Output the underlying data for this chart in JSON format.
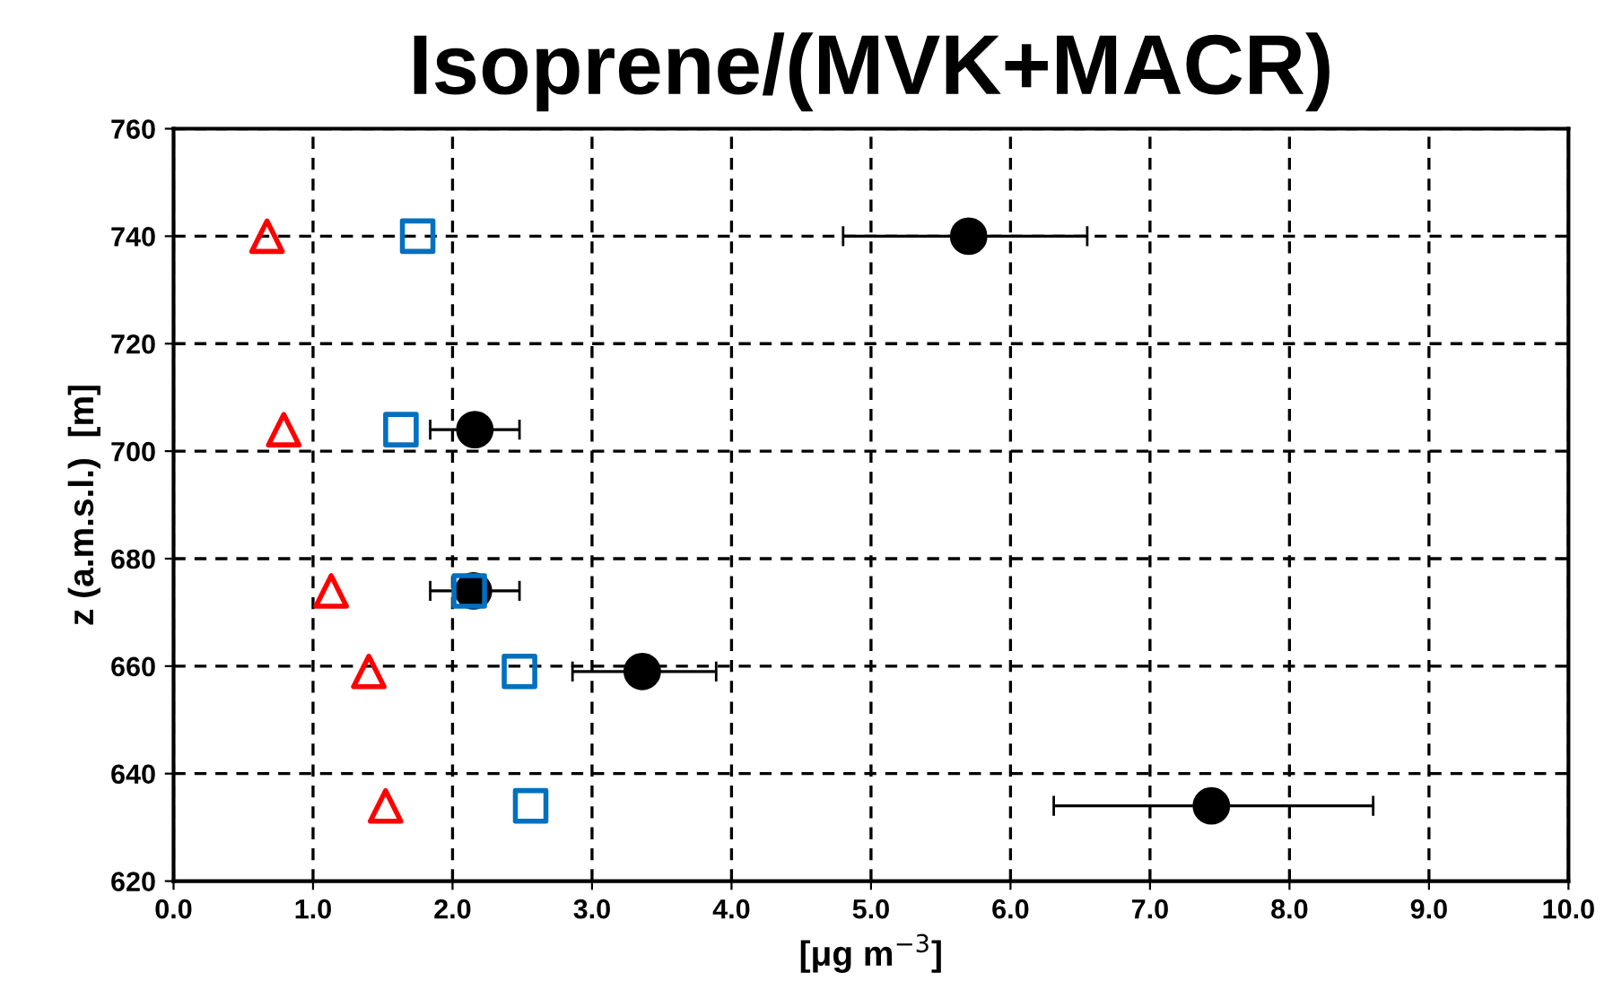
{
  "chart_data": {
    "type": "scatter",
    "title": "Isoprene/(MVK+MACR)",
    "xlabel": "[μg m$^{−3}$]",
    "ylabel": "z (a.m.s.l.)  [m]",
    "xlim": [
      0,
      10
    ],
    "ylim": [
      620,
      760
    ],
    "xticks": [
      {
        "value": 0,
        "label": "0.0"
      },
      {
        "value": 1,
        "label": "1.0"
      },
      {
        "value": 2,
        "label": "2.0"
      },
      {
        "value": 3,
        "label": "3.0"
      },
      {
        "value": 4,
        "label": "4.0"
      },
      {
        "value": 5,
        "label": "5.0"
      },
      {
        "value": 6,
        "label": "6.0"
      },
      {
        "value": 7,
        "label": "7.0"
      },
      {
        "value": 8,
        "label": "8.0"
      },
      {
        "value": 9,
        "label": "9.0"
      },
      {
        "value": 10,
        "label": "10.0"
      }
    ],
    "yticks": [
      620,
      640,
      660,
      680,
      700,
      720,
      740,
      760
    ],
    "grid": true,
    "legend": false,
    "series": [
      {
        "color": "#000000",
        "marker": "circle",
        "x": [
          5.7,
          2.16,
          2.15,
          3.36,
          7.44
        ],
        "values": [
          740,
          704,
          674,
          659,
          634
        ],
        "xerrors": [
          [
            4.8,
            6.55
          ],
          [
            1.84,
            2.48
          ],
          [
            1.84,
            2.48
          ],
          [
            2.86,
            3.89
          ],
          [
            6.31,
            8.6
          ]
        ]
      },
      {
        "color": "#0070c0",
        "marker": "square",
        "x": [
          1.75,
          1.63,
          2.12,
          2.48,
          2.56
        ],
        "values": [
          740,
          704,
          674,
          659,
          634
        ]
      },
      {
        "color": "#ff0000",
        "marker": "triangle",
        "x": [
          0.67,
          0.79,
          1.13,
          1.4,
          1.52
        ],
        "values": [
          740,
          704,
          674,
          659,
          634
        ]
      }
    ]
  }
}
